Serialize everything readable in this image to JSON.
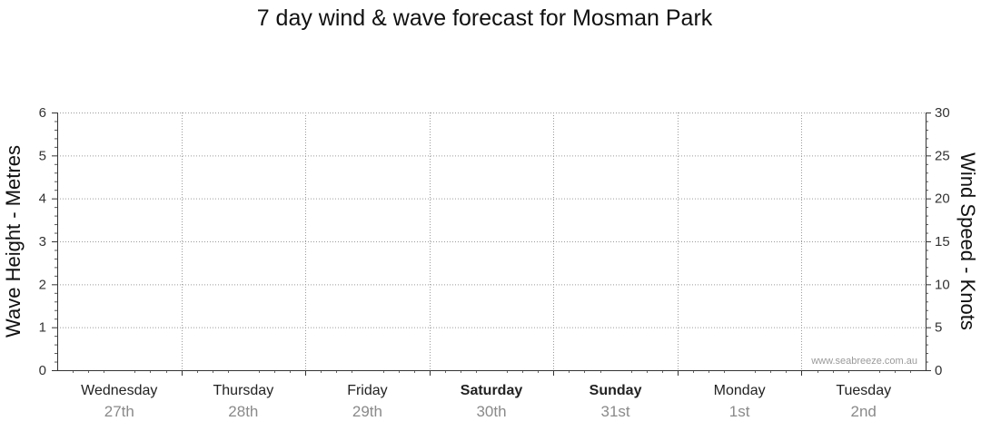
{
  "chart_data": {
    "type": "line",
    "title": "7 day wind & wave forecast for Mosman Park",
    "ylabel_left": "Wave Height - Metres",
    "ylabel_right": "Wind Speed - Knots",
    "ylim_left": [
      0,
      6
    ],
    "ylim_right": [
      0,
      30
    ],
    "yticks_left": [
      0,
      1,
      2,
      3,
      4,
      5,
      6
    ],
    "yticks_right": [
      0,
      5,
      10,
      15,
      20,
      25,
      30
    ],
    "grid": true,
    "days": [
      {
        "name": "Wednesday",
        "date": "27th",
        "bold": false
      },
      {
        "name": "Thursday",
        "date": "28th",
        "bold": false
      },
      {
        "name": "Friday",
        "date": "29th",
        "bold": false
      },
      {
        "name": "Saturday",
        "date": "30th",
        "bold": true
      },
      {
        "name": "Sunday",
        "date": "31st",
        "bold": true
      },
      {
        "name": "Monday",
        "date": "1st",
        "bold": false
      },
      {
        "name": "Tuesday",
        "date": "2nd",
        "bold": false
      }
    ],
    "series": [],
    "watermark": "www.seabreeze.com.au"
  }
}
